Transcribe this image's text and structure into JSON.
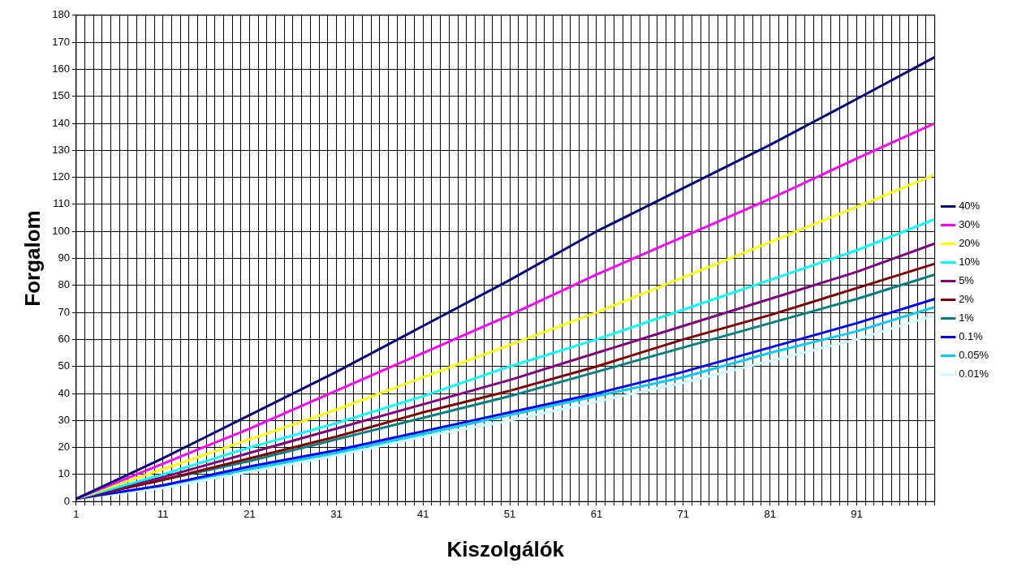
{
  "chart_data": {
    "type": "line",
    "xlabel": "Kiszolgálók",
    "ylabel": "Forgalom",
    "xlim": [
      1,
      100
    ],
    "ylim": [
      0,
      180
    ],
    "yticks": [
      0,
      10,
      20,
      30,
      40,
      50,
      60,
      70,
      80,
      90,
      100,
      110,
      120,
      130,
      140,
      150,
      160,
      170,
      180
    ],
    "xticks": [
      1,
      {
        "value": 2,
        "label": null
      },
      {
        "value": 3,
        "label": null
      },
      {
        "value": 4,
        "label": null
      },
      {
        "value": 5,
        "label": null
      },
      {
        "value": 6,
        "label": null
      },
      {
        "value": 7,
        "label": null
      },
      {
        "value": 8,
        "label": null
      },
      {
        "value": 9,
        "label": null
      },
      {
        "value": 10,
        "label": null
      },
      11,
      {
        "value": 12,
        "label": null
      },
      {
        "value": 13,
        "label": null
      },
      {
        "value": 14,
        "label": null
      },
      {
        "value": 15,
        "label": null
      },
      {
        "value": 16,
        "label": null
      },
      {
        "value": 17,
        "label": null
      },
      {
        "value": 18,
        "label": null
      },
      {
        "value": 19,
        "label": null
      },
      {
        "value": 20,
        "label": null
      },
      21,
      {
        "value": 22,
        "label": null
      },
      {
        "value": 23,
        "label": null
      },
      {
        "value": 24,
        "label": null
      },
      {
        "value": 25,
        "label": null
      },
      {
        "value": 26,
        "label": null
      },
      {
        "value": 27,
        "label": null
      },
      {
        "value": 28,
        "label": null
      },
      {
        "value": 29,
        "label": null
      },
      {
        "value": 30,
        "label": null
      },
      31,
      {
        "value": 32,
        "label": null
      },
      {
        "value": 33,
        "label": null
      },
      {
        "value": 34,
        "label": null
      },
      {
        "value": 35,
        "label": null
      },
      {
        "value": 36,
        "label": null
      },
      {
        "value": 37,
        "label": null
      },
      {
        "value": 38,
        "label": null
      },
      {
        "value": 39,
        "label": null
      },
      {
        "value": 40,
        "label": null
      },
      41,
      {
        "value": 42,
        "label": null
      },
      {
        "value": 43,
        "label": null
      },
      {
        "value": 44,
        "label": null
      },
      {
        "value": 45,
        "label": null
      },
      {
        "value": 46,
        "label": null
      },
      {
        "value": 47,
        "label": null
      },
      {
        "value": 48,
        "label": null
      },
      {
        "value": 49,
        "label": null
      },
      {
        "value": 50,
        "label": null
      },
      51,
      {
        "value": 52,
        "label": null
      },
      {
        "value": 53,
        "label": null
      },
      {
        "value": 54,
        "label": null
      },
      {
        "value": 55,
        "label": null
      },
      {
        "value": 56,
        "label": null
      },
      {
        "value": 57,
        "label": null
      },
      {
        "value": 58,
        "label": null
      },
      {
        "value": 59,
        "label": null
      },
      {
        "value": 60,
        "label": null
      },
      61,
      {
        "value": 62,
        "label": null
      },
      {
        "value": 63,
        "label": null
      },
      {
        "value": 64,
        "label": null
      },
      {
        "value": 65,
        "label": null
      },
      {
        "value": 66,
        "label": null
      },
      {
        "value": 67,
        "label": null
      },
      {
        "value": 68,
        "label": null
      },
      {
        "value": 69,
        "label": null
      },
      {
        "value": 70,
        "label": null
      },
      71,
      {
        "value": 72,
        "label": null
      },
      {
        "value": 73,
        "label": null
      },
      {
        "value": 74,
        "label": null
      },
      {
        "value": 75,
        "label": null
      },
      {
        "value": 76,
        "label": null
      },
      {
        "value": 77,
        "label": null
      },
      {
        "value": 78,
        "label": null
      },
      {
        "value": 79,
        "label": null
      },
      {
        "value": 80,
        "label": null
      },
      81,
      {
        "value": 82,
        "label": null
      },
      {
        "value": 83,
        "label": null
      },
      {
        "value": 84,
        "label": null
      },
      {
        "value": 85,
        "label": null
      },
      {
        "value": 86,
        "label": null
      },
      {
        "value": 87,
        "label": null
      },
      {
        "value": 88,
        "label": null
      },
      {
        "value": 89,
        "label": null
      },
      {
        "value": 90,
        "label": null
      },
      91,
      {
        "value": 92,
        "label": null
      },
      {
        "value": 93,
        "label": null
      },
      {
        "value": 94,
        "label": null
      },
      {
        "value": 95,
        "label": null
      },
      {
        "value": 96,
        "label": null
      },
      {
        "value": 97,
        "label": null
      },
      {
        "value": 98,
        "label": null
      },
      {
        "value": 99,
        "label": null
      },
      {
        "value": 100,
        "label": null
      }
    ],
    "x": [
      1,
      11,
      21,
      31,
      41,
      51,
      61,
      71,
      81,
      91,
      100
    ],
    "grid": true,
    "legend": "right",
    "marker": "none",
    "line_style": "solid",
    "series": [
      {
        "name": "40%",
        "color": "#000080",
        "values": [
          1,
          16,
          32,
          48,
          65,
          82,
          100,
          116,
          132,
          149,
          164.5
        ]
      },
      {
        "name": "30%",
        "color": "#ff00ff",
        "values": [
          1,
          14,
          27,
          41,
          55,
          69,
          84,
          98,
          112,
          127,
          140
        ]
      },
      {
        "name": "20%",
        "color": "#ffff00",
        "values": [
          1,
          12,
          23,
          34,
          46,
          58,
          70,
          83,
          96,
          109,
          121
        ]
      },
      {
        "name": "10%",
        "color": "#00ffff",
        "values": [
          1,
          10,
          20,
          29,
          39,
          50,
          60,
          71,
          82,
          93,
          104.5
        ]
      },
      {
        "name": "5%",
        "color": "#800080",
        "values": [
          1,
          9,
          18,
          27,
          36,
          45,
          55,
          65,
          75,
          85,
          95.5
        ]
      },
      {
        "name": "2%",
        "color": "#800000",
        "values": [
          1,
          8,
          16,
          24,
          33,
          41,
          50,
          60,
          69,
          79,
          88
        ]
      },
      {
        "name": "1%",
        "color": "#008080",
        "values": [
          1,
          8,
          15,
          23,
          31,
          39,
          48,
          57,
          66,
          75,
          84
        ]
      },
      {
        "name": "0.1%",
        "color": "#0000ff",
        "values": [
          1,
          6,
          13,
          19,
          26,
          33,
          40,
          48,
          57,
          66,
          75
        ]
      },
      {
        "name": "0.05%",
        "color": "#00ccff",
        "values": [
          1,
          6,
          12,
          18,
          25,
          32,
          39,
          46,
          55,
          63,
          72
        ]
      },
      {
        "name": "0.01%",
        "color": "#ccffff",
        "values": [
          1,
          5,
          11,
          17,
          24,
          30,
          37,
          44,
          52,
          60,
          69
        ]
      }
    ]
  }
}
